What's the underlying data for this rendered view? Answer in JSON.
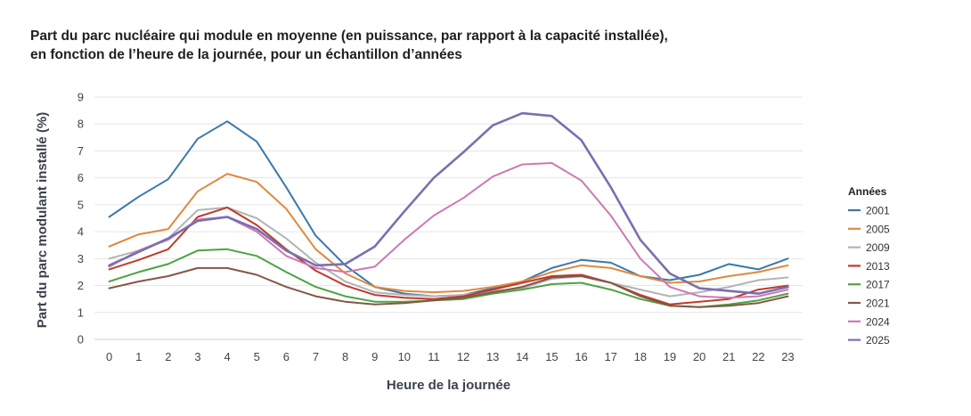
{
  "chart_data": {
    "type": "line",
    "title_line1": "Part du parc nucléaire qui module en moyenne (en puissance, par rapport à la capacité installée),",
    "title_line2": "en fonction de l’heure de la journée, pour un échantillon d’années",
    "xlabel": "Heure de la journée",
    "ylabel": "Part du parc modulant installé (%)",
    "legend_title": "Années",
    "legend_position": "right",
    "x": [
      0,
      1,
      2,
      3,
      4,
      5,
      6,
      7,
      8,
      9,
      10,
      11,
      12,
      13,
      14,
      15,
      16,
      17,
      18,
      19,
      20,
      21,
      22,
      23
    ],
    "y_ticks": [
      0,
      1,
      2,
      3,
      4,
      5,
      6,
      7,
      8,
      9
    ],
    "ylim": [
      0,
      9
    ],
    "series": [
      {
        "name": "2001",
        "color": "#3b78a8",
        "values": [
          4.55,
          5.3,
          5.95,
          7.45,
          8.1,
          7.35,
          5.65,
          3.85,
          2.75,
          1.95,
          1.7,
          1.6,
          1.65,
          1.9,
          2.15,
          2.65,
          2.95,
          2.85,
          2.35,
          2.2,
          2.4,
          2.8,
          2.6,
          3.0
        ]
      },
      {
        "name": "2005",
        "color": "#e0893e",
        "values": [
          3.45,
          3.9,
          4.1,
          5.5,
          6.15,
          5.85,
          4.85,
          3.35,
          2.45,
          1.95,
          1.8,
          1.75,
          1.8,
          1.95,
          2.15,
          2.5,
          2.75,
          2.65,
          2.35,
          2.1,
          2.15,
          2.35,
          2.5,
          2.75
        ]
      },
      {
        "name": "2009",
        "color": "#b4b4b4",
        "values": [
          3.0,
          3.3,
          3.75,
          4.8,
          4.9,
          4.5,
          3.75,
          2.85,
          2.15,
          1.75,
          1.65,
          1.6,
          1.65,
          1.8,
          1.9,
          2.25,
          2.35,
          2.1,
          1.85,
          1.6,
          1.75,
          1.95,
          2.2,
          2.3
        ]
      },
      {
        "name": "2013",
        "color": "#c0392b",
        "values": [
          2.6,
          2.95,
          3.35,
          4.55,
          4.9,
          4.25,
          3.35,
          2.55,
          2.0,
          1.65,
          1.55,
          1.5,
          1.6,
          1.85,
          2.1,
          2.35,
          2.4,
          2.1,
          1.65,
          1.3,
          1.4,
          1.5,
          1.85,
          2.0
        ]
      },
      {
        "name": "2017",
        "color": "#4ea240",
        "values": [
          2.15,
          2.5,
          2.8,
          3.3,
          3.35,
          3.1,
          2.5,
          1.95,
          1.6,
          1.4,
          1.4,
          1.45,
          1.5,
          1.7,
          1.85,
          2.05,
          2.1,
          1.85,
          1.5,
          1.25,
          1.2,
          1.3,
          1.45,
          1.7
        ]
      },
      {
        "name": "2021",
        "color": "#845746",
        "values": [
          1.9,
          2.15,
          2.35,
          2.65,
          2.65,
          2.4,
          1.95,
          1.6,
          1.4,
          1.3,
          1.35,
          1.45,
          1.55,
          1.75,
          1.95,
          2.3,
          2.35,
          2.1,
          1.6,
          1.25,
          1.2,
          1.25,
          1.35,
          1.6
        ]
      },
      {
        "name": "2024",
        "color": "#cc79b3",
        "values": [
          2.7,
          3.3,
          3.7,
          4.45,
          4.55,
          4.0,
          3.1,
          2.65,
          2.5,
          2.7,
          3.7,
          4.6,
          5.25,
          6.05,
          6.5,
          6.55,
          5.9,
          4.6,
          3.0,
          1.95,
          1.6,
          1.55,
          1.6,
          1.85
        ]
      },
      {
        "name": "2025",
        "color": "#7a6fb0",
        "values": [
          2.75,
          3.25,
          3.75,
          4.4,
          4.55,
          4.1,
          3.3,
          2.75,
          2.8,
          3.45,
          4.75,
          6.0,
          6.95,
          7.95,
          8.4,
          8.3,
          7.4,
          5.65,
          3.7,
          2.45,
          1.9,
          1.8,
          1.7,
          1.95
        ]
      }
    ]
  }
}
